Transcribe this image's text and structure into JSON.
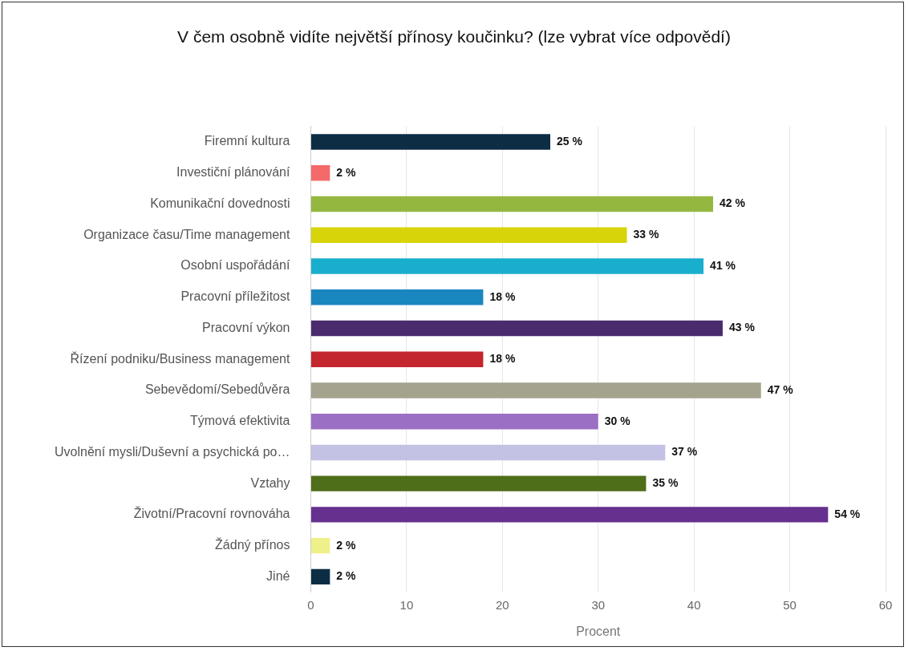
{
  "chart_data": {
    "type": "bar",
    "orientation": "horizontal",
    "title": "V čem osobně vidíte největší přínosy koučinku? (lze vybrat více odpovědí)",
    "xlabel": "Procent",
    "categories": [
      "Firemní kultura",
      "Investiční plánování",
      "Komunikační dovednosti",
      "Organizace času/Time management",
      "Osobní uspořádání",
      "Pracovní příležitost",
      "Pracovní výkon",
      "Řízení podniku/Business management",
      "Sebevědomí/Sebedůvěra",
      "Týmová efektivita",
      "Uvolnění mysli/Duševní a psychická po…",
      "Vztahy",
      "Životní/Pracovní rovnováha",
      "Žádný přínos",
      "Jiné"
    ],
    "values": [
      25,
      2,
      42,
      33,
      41,
      18,
      43,
      18,
      47,
      30,
      37,
      35,
      54,
      2,
      2
    ],
    "value_labels": [
      "25 %",
      "2 %",
      "42 %",
      "33 %",
      "41 %",
      "18 %",
      "43 %",
      "18 %",
      "47 %",
      "30 %",
      "37 %",
      "35 %",
      "54 %",
      "2 %",
      "2 %"
    ],
    "colors": [
      "#0d2d45",
      "#f46a6a",
      "#94b83f",
      "#d8d40a",
      "#1aaecd",
      "#1a86c0",
      "#4a2c6e",
      "#c4262e",
      "#a4a38d",
      "#9b6fc4",
      "#c3c1e4",
      "#4e6e1a",
      "#66308f",
      "#eef08a",
      "#0d2d45"
    ],
    "xlim": [
      0,
      60
    ],
    "xticks": [
      0,
      10,
      20,
      30,
      40,
      50,
      60
    ],
    "grid": "x",
    "legend": false
  }
}
